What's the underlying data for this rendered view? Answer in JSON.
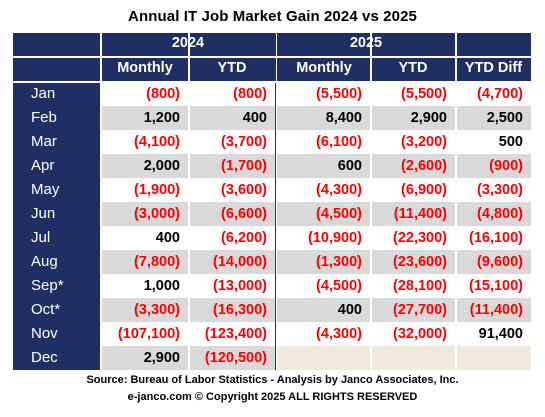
{
  "colors": {
    "header_bg": "#1f2f63",
    "row_white": "#ffffff",
    "row_gray": "#d9d9d9",
    "empty_cell": "#efeadc",
    "negative": "#ff0000",
    "positive": "#000000"
  },
  "chart_data": {
    "type": "table",
    "title": "Annual IT  Job Market  Gain 2024 vs 2025",
    "groups": [
      "2024",
      "2025"
    ],
    "columns": [
      "Monthly",
      "YTD",
      "Monthly",
      "YTD",
      "YTD Diff"
    ],
    "rows": [
      {
        "month": "Jan",
        "cells": [
          "(800)",
          "(800)",
          "(5,500)",
          "(5,500)",
          "(4,700)"
        ]
      },
      {
        "month": "Feb",
        "cells": [
          "1,200",
          "400",
          "8,400",
          "2,900",
          "2,500"
        ]
      },
      {
        "month": "Mar",
        "cells": [
          "(4,100)",
          "(3,700)",
          "(6,100)",
          "(3,200)",
          "500"
        ]
      },
      {
        "month": "Apr",
        "cells": [
          "2,000",
          "(1,700)",
          "600",
          "(2,600)",
          "(900)"
        ]
      },
      {
        "month": "May",
        "cells": [
          "(1,900)",
          "(3,600)",
          "(4,300)",
          "(6,900)",
          "(3,300)"
        ]
      },
      {
        "month": "Jun",
        "cells": [
          "(3,000)",
          "(6,600)",
          "(4,500)",
          "(11,400)",
          "(4,800)"
        ]
      },
      {
        "month": "Jul",
        "cells": [
          "400",
          "(6,200)",
          "(10,900)",
          "(22,300)",
          "(16,100)"
        ]
      },
      {
        "month": "Aug",
        "cells": [
          "(7,800)",
          "(14,000)",
          "(1,300)",
          "(23,600)",
          "(9,600)"
        ]
      },
      {
        "month": "Sep*",
        "cells": [
          "1,000",
          "(13,000)",
          "(4,500)",
          "(28,100)",
          "(15,100)"
        ]
      },
      {
        "month": "Oct*",
        "cells": [
          "(3,300)",
          "(16,300)",
          "400",
          "(27,700)",
          "(11,400)"
        ]
      },
      {
        "month": "Nov",
        "cells": [
          "(107,100)",
          "(123,400)",
          "(4,300)",
          "(32,000)",
          "91,400"
        ]
      },
      {
        "month": "Dec",
        "cells": [
          "2,900",
          "(120,500)",
          "",
          "",
          ""
        ]
      }
    ],
    "source": "Source: Bureau of Labor Statistics - Analysis by Janco Associates, Inc.",
    "copyright": "e-janco.com © Copyright 2025 ALL RIGHTS RESERVED"
  }
}
